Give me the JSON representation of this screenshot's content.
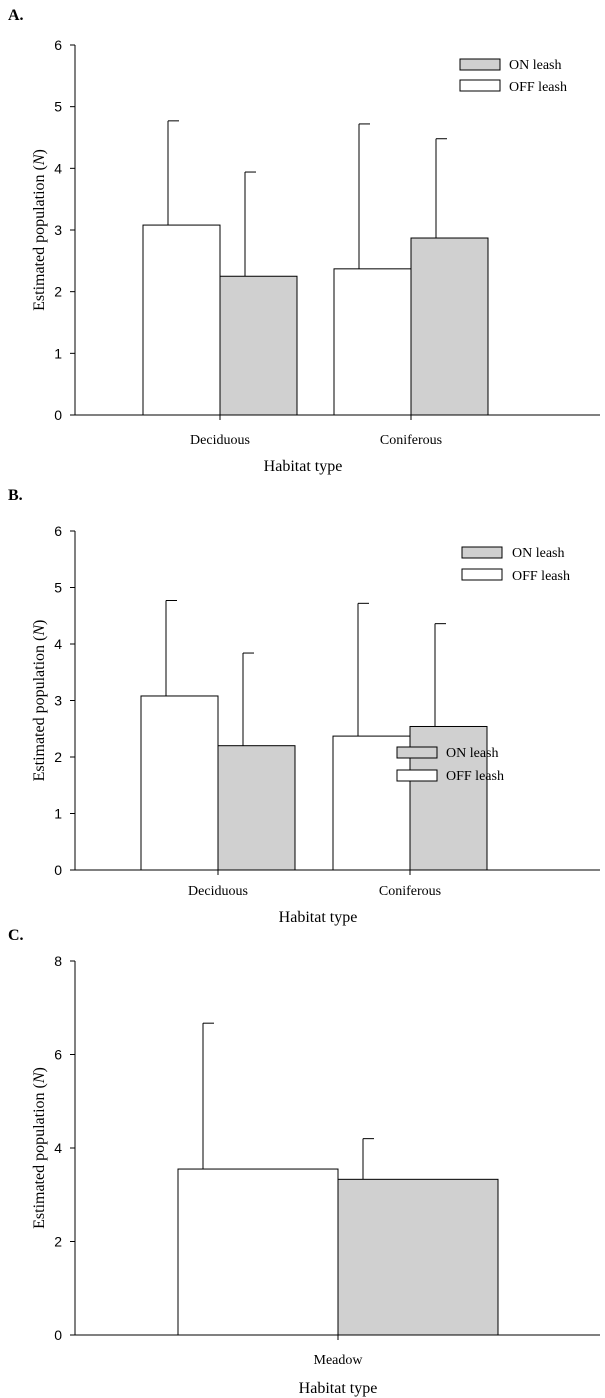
{
  "chart_data": [
    {
      "panel_label": "A.",
      "type": "bar",
      "categories": [
        "Deciduous",
        "Coniferous"
      ],
      "series": [
        {
          "name": "OFF leash",
          "color": "#ffffff",
          "values": [
            3.08,
            2.37
          ],
          "error": [
            1.69,
            2.35
          ]
        },
        {
          "name": "ON leash",
          "color": "#d0d0d0",
          "values": [
            2.25,
            2.87
          ],
          "error": [
            1.69,
            1.61
          ]
        }
      ],
      "xlabel": "Habitat type",
      "ylabel": "Estimated population (",
      "ylabel_italic": "N",
      "ylabel_close": ")",
      "ylim": [
        0,
        6
      ],
      "yticks": [
        "0",
        "1",
        "2",
        "3",
        "4",
        "5",
        "6"
      ],
      "legend_placement": "top-right",
      "grid": false
    },
    {
      "panel_label": "B.",
      "type": "bar",
      "categories": [
        "Deciduous",
        "Coniferous"
      ],
      "series": [
        {
          "name": "OFF leash",
          "color": "#ffffff",
          "values": [
            3.08,
            2.37
          ],
          "error": [
            1.69,
            2.35
          ]
        },
        {
          "name": "ON leash",
          "color": "#d0d0d0",
          "values": [
            2.2,
            2.54
          ],
          "error": [
            1.64,
            1.82
          ]
        }
      ],
      "xlabel": "Habitat type",
      "ylabel": "Estimated population (",
      "ylabel_italic": "N",
      "ylabel_close": ")",
      "ylim": [
        0,
        6
      ],
      "yticks": [
        "0",
        "1",
        "2",
        "3",
        "4",
        "5",
        "6"
      ],
      "legend_placement": "top-right",
      "grid": false
    },
    {
      "panel_label": "C.",
      "type": "bar",
      "categories": [
        "Meadow"
      ],
      "series": [
        {
          "name": "OFF leash",
          "color": "#ffffff",
          "values": [
            3.55
          ],
          "error": [
            3.12
          ]
        },
        {
          "name": "ON leash",
          "color": "#d0d0d0",
          "values": [
            3.33
          ],
          "error": [
            0.87
          ]
        }
      ],
      "xlabel": "Habitat type",
      "ylabel": "Estimated population (",
      "ylabel_italic": "N",
      "ylabel_close": ")",
      "ylim": [
        0,
        8
      ],
      "yticks": [
        "0",
        "2",
        "4",
        "6",
        "8"
      ],
      "legend_placement": "top-right",
      "grid": false
    }
  ]
}
